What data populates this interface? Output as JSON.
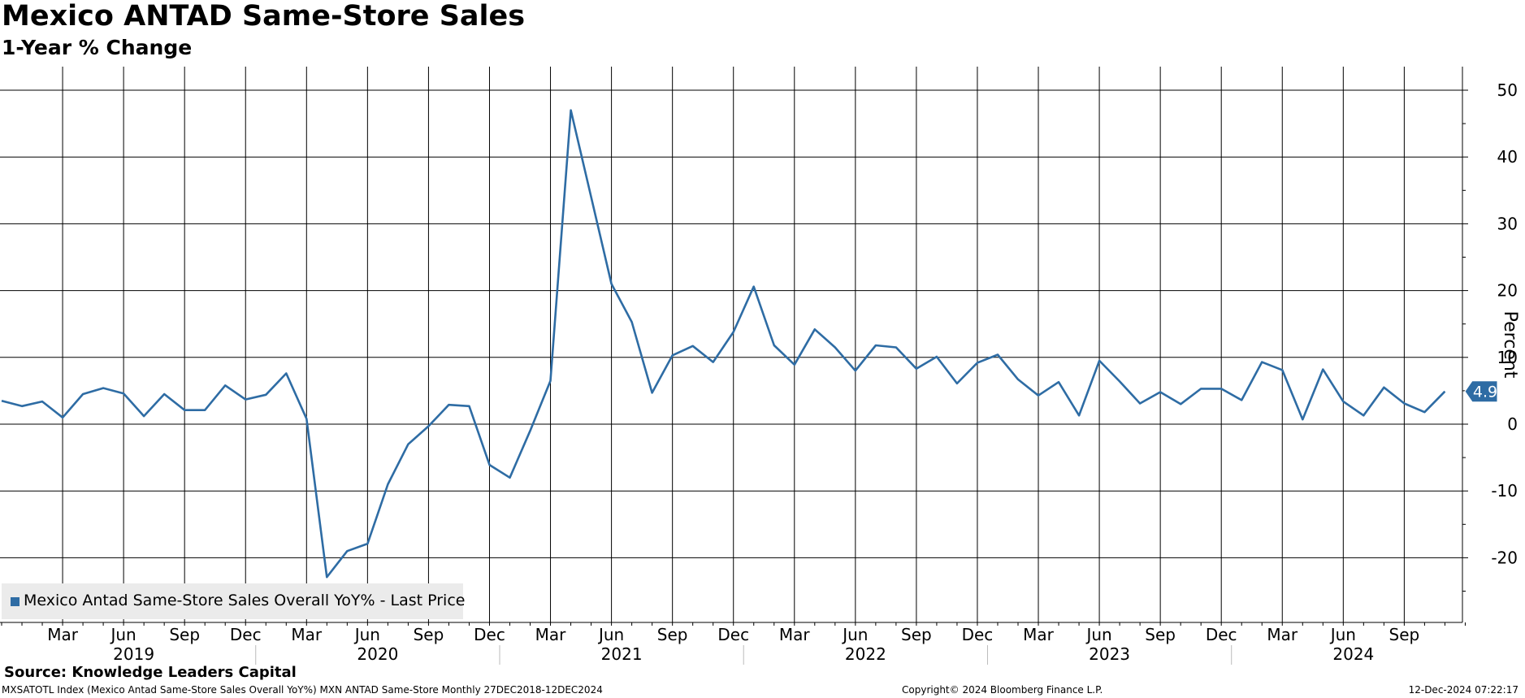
{
  "title": "Mexico ANTAD Same-Store Sales",
  "subtitle": "1-Year % Change",
  "source": "Source: Knowledge Leaders Capital",
  "footer": {
    "left": "MXSATOTL Index (Mexico Antad Same-Store Sales Overall YoY%) MXN ANTAD Same-Store  Monthly 27DEC2018-12DEC2024",
    "mid": "Copyright© 2024 Bloomberg Finance L.P.",
    "right": "12-Dec-2024 07:22:17"
  },
  "colors": {
    "series": "#2e6ca4",
    "grid": "#000000",
    "legend_bg": "#ebebeb",
    "label_text": "#ffffff"
  },
  "chart_data": {
    "type": "line",
    "title": "Mexico ANTAD Same-Store Sales",
    "subtitle": "1-Year % Change",
    "xlabel": "",
    "ylabel": "Percent",
    "ylim": [
      -26,
      54
    ],
    "yticks": [
      -20,
      -10,
      0,
      10,
      20,
      30,
      40,
      50
    ],
    "grid": true,
    "legend_position": "bottom-left",
    "month_ticks": [
      "Mar",
      "Jun",
      "Sep",
      "Dec",
      "Mar",
      "Jun",
      "Sep",
      "Dec",
      "Mar",
      "Jun",
      "Sep",
      "Dec",
      "Mar",
      "Jun",
      "Sep",
      "Dec",
      "Mar",
      "Jun",
      "Sep",
      "Dec",
      "Mar",
      "Jun",
      "Sep"
    ],
    "year_labels": [
      "2019",
      "2020",
      "2021",
      "2022",
      "2023",
      "2024"
    ],
    "last_value_label": "4.9",
    "series": [
      {
        "name": "Mexico Antad Same-Store Sales Overall YoY% - Last Price",
        "start": "2018-12",
        "values": [
          3.5,
          2.7,
          3.4,
          1.0,
          4.5,
          5.4,
          4.6,
          1.2,
          4.5,
          2.1,
          2.1,
          5.8,
          3.7,
          4.4,
          7.6,
          0.8,
          -22.9,
          -19.0,
          -17.9,
          -9.0,
          -3.0,
          -0.3,
          2.9,
          2.7,
          -6.1,
          -8.0,
          -1.0,
          6.5,
          47.0,
          34.0,
          21.0,
          15.3,
          4.7,
          10.3,
          11.7,
          9.3,
          13.8,
          20.6,
          11.8,
          8.9,
          14.2,
          11.5,
          8.0,
          11.8,
          11.5,
          8.3,
          10.1,
          6.1,
          9.2,
          10.4,
          6.7,
          4.3,
          6.3,
          1.3,
          9.5,
          6.4,
          3.1,
          4.8,
          3.0,
          5.3,
          5.3,
          3.6,
          9.3,
          8.1,
          0.7,
          8.2,
          3.4,
          1.3,
          5.5,
          3.1,
          1.8,
          4.9
        ]
      }
    ]
  }
}
